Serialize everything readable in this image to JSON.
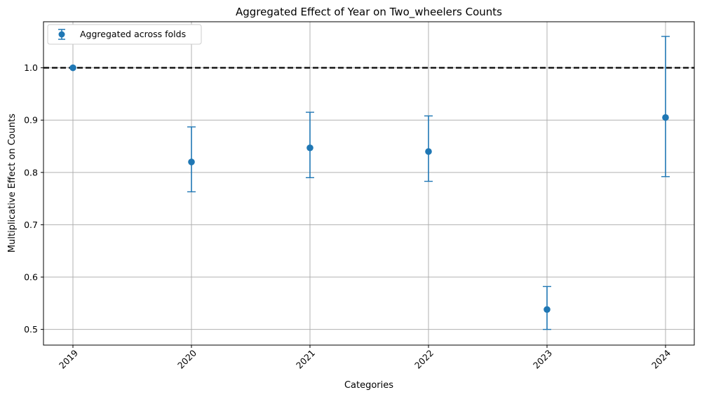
{
  "chart_data": {
    "type": "scatter",
    "title": "Aggregated Effect of Year on Two_wheelers Counts",
    "xlabel": "Categories",
    "ylabel": "Multiplicative Effect on Counts",
    "categories": [
      "2019",
      "2020",
      "2021",
      "2022",
      "2023",
      "2024"
    ],
    "series": [
      {
        "name": "Aggregated across folds",
        "values": [
          1.0,
          0.82,
          0.847,
          0.84,
          0.538,
          0.905
        ],
        "lower": [
          1.0,
          0.763,
          0.79,
          0.783,
          0.5,
          0.792
        ],
        "upper": [
          1.0,
          0.887,
          0.915,
          0.908,
          0.582,
          1.06
        ]
      }
    ],
    "reference_line": 1.0,
    "ylim": [
      0.47,
      1.088
    ],
    "yticks": [
      "0.5",
      "0.6",
      "0.7",
      "0.8",
      "0.9",
      "1.0"
    ],
    "ytick_values": [
      0.5,
      0.6,
      0.7,
      0.8,
      0.9,
      1.0
    ],
    "grid": true,
    "legend_position": "top-left",
    "colors": {
      "series": "#1f77b4",
      "reference": "#000000",
      "grid": "#b0b0b0"
    }
  }
}
